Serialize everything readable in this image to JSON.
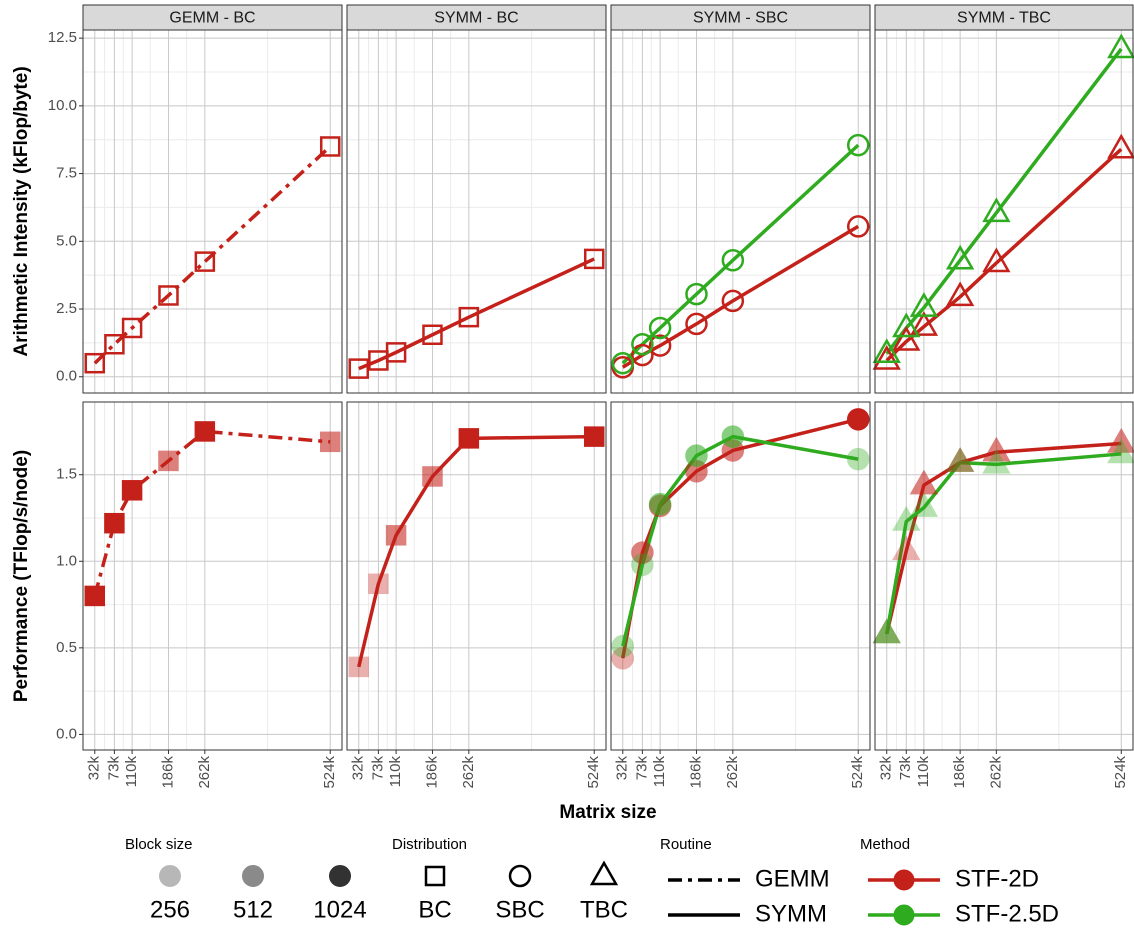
{
  "chart_data": {
    "type": "line",
    "xlabel": "Matrix size",
    "x": [
      32,
      73,
      110,
      186,
      262,
      524
    ],
    "xticks": [
      {
        "value": 32,
        "label": "32k"
      },
      {
        "value": 73,
        "label": "73k"
      },
      {
        "value": 110,
        "label": "110k"
      },
      {
        "value": 186,
        "label": "186k"
      },
      {
        "value": 262,
        "label": "262k"
      },
      {
        "value": 524,
        "label": "524k"
      }
    ],
    "xlim": [
      7.4,
      548.6
    ],
    "grid": true,
    "rows": [
      {
        "ylabel": "Arithmetic Intensity (kFlop/byte)",
        "ylim": [
          -0.6,
          12.8
        ],
        "filled": false,
        "yticks": [
          {
            "value": 0,
            "label": "0.0"
          },
          2.5,
          {
            "value": 5,
            "label": "5.0"
          },
          7.5,
          {
            "value": 10,
            "label": "10.0"
          },
          12.5
        ]
      },
      {
        "ylabel": "Performance (TFlop/s/node)",
        "ylim": [
          -0.09,
          1.92
        ],
        "filled": true,
        "yticks": [
          {
            "value": 0,
            "label": "0.0"
          },
          0.5,
          {
            "value": 1,
            "label": "1.0"
          },
          1.5
        ]
      }
    ],
    "facets": [
      {
        "title": "GEMM - BC",
        "routine": "GEMM",
        "distribution": "BC",
        "series": [
          {
            "name": "STF-2D",
            "color": "#c4211a",
            "values": [
              [
                0.5,
                1.2,
                1.8,
                3.0,
                4.25,
                8.5
              ],
              [
                0.8,
                1.22,
                1.41,
                1.58,
                1.75,
                1.69
              ]
            ],
            "block_size": [
              1024,
              1024,
              1024,
              512,
              1024,
              512
            ]
          }
        ]
      },
      {
        "title": "SYMM - BC",
        "routine": "SYMM",
        "distribution": "BC",
        "series": [
          {
            "name": "STF-2D",
            "color": "#c4211a",
            "values": [
              [
                0.3,
                0.6,
                0.9,
                1.55,
                2.2,
                4.35
              ],
              [
                0.39,
                0.87,
                1.15,
                1.49,
                1.71,
                1.72
              ]
            ],
            "block_size": [
              256,
              256,
              512,
              512,
              1024,
              1024
            ]
          }
        ]
      },
      {
        "title": "SYMM - SBC",
        "routine": "SYMM",
        "distribution": "SBC",
        "series": [
          {
            "name": "STF-2D",
            "color": "#c4211a",
            "values": [
              [
                0.35,
                0.8,
                1.15,
                1.95,
                2.8,
                5.55
              ],
              [
                0.44,
                1.05,
                1.32,
                1.52,
                1.64,
                1.82
              ]
            ],
            "block_size": [
              256,
              512,
              512,
              512,
              512,
              1024
            ]
          },
          {
            "name": "STF-2.5D",
            "color": "#2eab1e",
            "values": [
              [
                0.5,
                1.2,
                1.8,
                3.05,
                4.3,
                8.55
              ],
              [
                0.51,
                0.98,
                1.33,
                1.61,
                1.72,
                1.59
              ]
            ],
            "block_size": [
              256,
              256,
              512,
              512,
              512,
              256
            ]
          }
        ]
      },
      {
        "title": "SYMM - TBC",
        "routine": "SYMM",
        "distribution": "TBC",
        "series": [
          {
            "name": "STF-2D",
            "color": "#c4211a",
            "values": [
              [
                0.6,
                1.3,
                1.85,
                2.95,
                4.2,
                8.4
              ],
              [
                0.58,
                1.06,
                1.44,
                1.57,
                1.63,
                1.68
              ]
            ],
            "block_size": [
              256,
              256,
              512,
              512,
              512,
              512
            ]
          },
          {
            "name": "STF-2.5D",
            "color": "#2eab1e",
            "values": [
              [
                0.85,
                1.8,
                2.55,
                4.3,
                6.05,
                12.1
              ],
              [
                0.58,
                1.23,
                1.31,
                1.57,
                1.56,
                1.62
              ]
            ],
            "block_size": [
              512,
              256,
              256,
              256,
              256,
              256
            ]
          }
        ]
      }
    ],
    "legend": {
      "block_size": {
        "title": "Block size",
        "values": [
          256,
          512,
          1024
        ]
      },
      "distribution": {
        "title": "Distribution",
        "values": [
          "BC",
          "SBC",
          "TBC"
        ]
      },
      "routine": {
        "title": "Routine",
        "values": [
          "GEMM",
          "SYMM"
        ]
      },
      "method": {
        "title": "Method",
        "values": [
          {
            "name": "STF-2D",
            "color": "#c4211a"
          },
          {
            "name": "STF-2.5D",
            "color": "#2eab1e"
          }
        ]
      }
    }
  }
}
